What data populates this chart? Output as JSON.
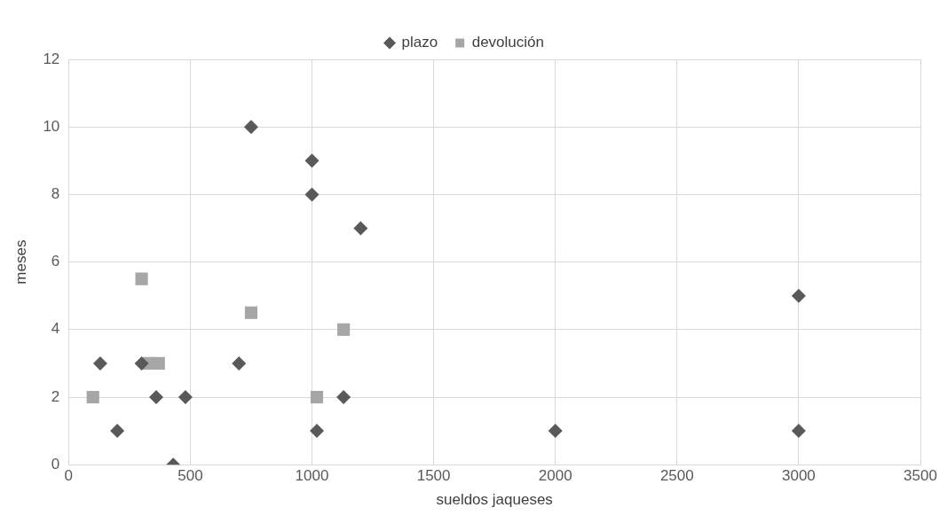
{
  "chart_data": {
    "type": "scatter",
    "xlabel": "sueldos jaqueses",
    "ylabel": "meses",
    "legend": "top",
    "grid": true,
    "xlim": [
      0,
      3500
    ],
    "xticks": [
      0,
      500,
      1000,
      1500,
      2000,
      2500,
      3000,
      3500
    ],
    "ylim": [
      0,
      12
    ],
    "yticks": [
      0,
      2,
      4,
      6,
      8,
      10,
      12
    ],
    "series": [
      {
        "name": "plazo",
        "color": "#595959",
        "marker": "diamond",
        "x": [
          130,
          200,
          300,
          360,
          430,
          480,
          700,
          750,
          1000,
          1000,
          1020,
          1130,
          1200,
          2000,
          3000,
          3000
        ],
        "values": [
          3,
          1,
          3,
          2,
          0,
          2,
          3,
          10,
          9,
          8,
          1,
          2,
          7,
          1,
          5,
          1
        ]
      },
      {
        "name": "devolución",
        "color": "#a6a6a6",
        "marker": "square",
        "x": [
          100,
          300,
          330,
          370,
          750,
          1020,
          1130
        ],
        "values": [
          2,
          5.5,
          3,
          3,
          4.5,
          2,
          4
        ]
      }
    ]
  }
}
